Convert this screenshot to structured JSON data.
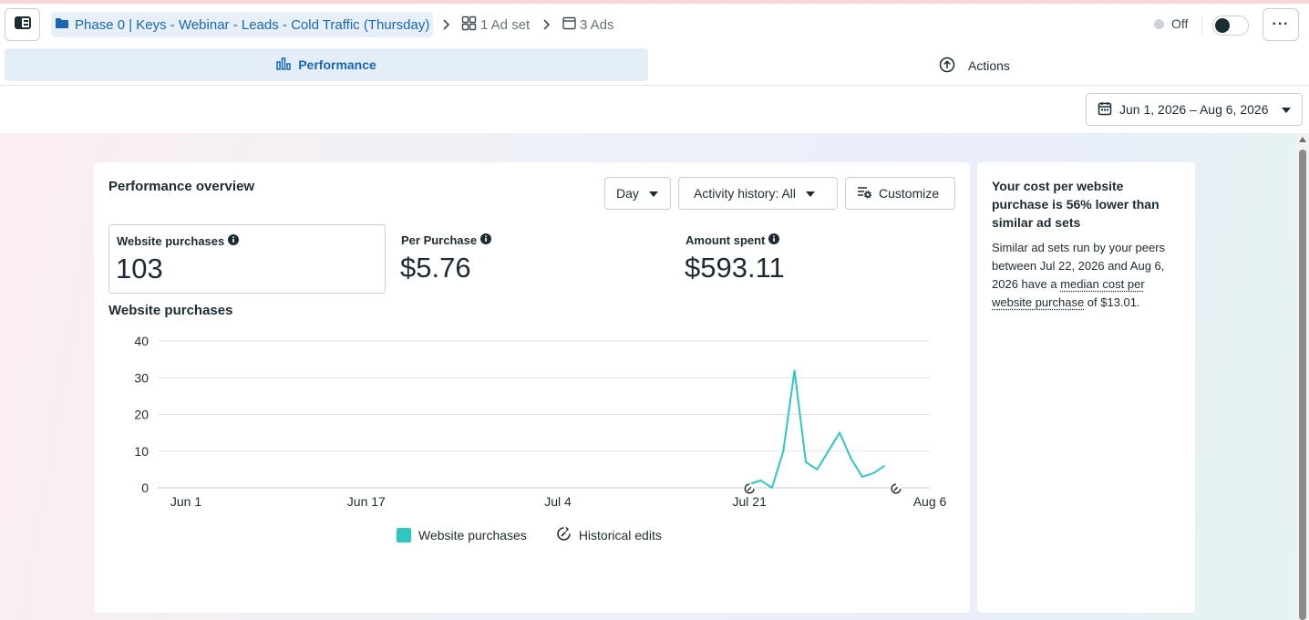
{
  "header": {
    "campaign_name": "Phase 0 | Keys - Webinar - Leads - Cold Traffic (Thursday)",
    "adset_crumb": "1 Ad set",
    "ads_crumb": "3 Ads",
    "status": "Off",
    "toggle_on": false,
    "more_label": "···"
  },
  "tabs": {
    "performance": "Performance",
    "actions": "Actions"
  },
  "date_range": "Jun 1, 2026 – Aug 6, 2026",
  "overview": {
    "title": "Performance overview",
    "controls": {
      "granularity": "Day",
      "activity": "Activity history: All",
      "customize": "Customize"
    },
    "metrics": [
      {
        "label": "Website purchases",
        "value": "103",
        "selected": true
      },
      {
        "label": "Per Purchase",
        "value": "$5.76",
        "selected": false
      },
      {
        "label": "Amount spent",
        "value": "$593.11",
        "selected": false
      }
    ]
  },
  "chart_data": {
    "type": "line",
    "title": "Website purchases",
    "xlabel": "",
    "ylabel": "",
    "ylim": [
      0,
      40
    ],
    "y_ticks": [
      0,
      10,
      20,
      30,
      40
    ],
    "x_tick_labels": [
      "Jun 1",
      "Jun 17",
      "Jul 4",
      "Jul 21",
      "Aug 6"
    ],
    "x_tick_days": [
      0,
      16,
      33,
      50,
      66
    ],
    "grid": true,
    "legend_position": "bottom",
    "color": "#2fc7c1",
    "series": [
      {
        "name": "Website purchases",
        "x_days": [
          50,
          51,
          52,
          53,
          54,
          55,
          56,
          57,
          58,
          59,
          60,
          61,
          62,
          63
        ],
        "values": [
          1,
          2,
          0,
          10,
          32,
          7,
          5,
          10,
          15,
          8,
          3,
          4,
          6,
          null
        ]
      }
    ],
    "historical_edit_days": [
      50,
      63
    ],
    "legend": [
      "Website purchases",
      "Historical edits"
    ]
  },
  "insight": {
    "headline": "Your cost per website purchase is 56% lower than similar ad sets",
    "body_before": "Similar ad sets run by your peers between Jul 22, 2026 and Aug 6, 2026 have a ",
    "body_link": "median cost per website purchase",
    "body_after": " of $13.01."
  },
  "colors": {
    "accent": "#1a66b3",
    "line": "#2fc7c1",
    "tab_active_bg": "#e4eef8"
  },
  "icons": [
    "panel-toggle-icon",
    "folder-icon",
    "chevron-right-icon",
    "adset-grid-icon",
    "ad-icon",
    "bar-chart-icon",
    "upload-circle-icon",
    "calendar-icon",
    "caret-down-icon",
    "customize-icon",
    "info-icon",
    "historical-edit-icon"
  ]
}
